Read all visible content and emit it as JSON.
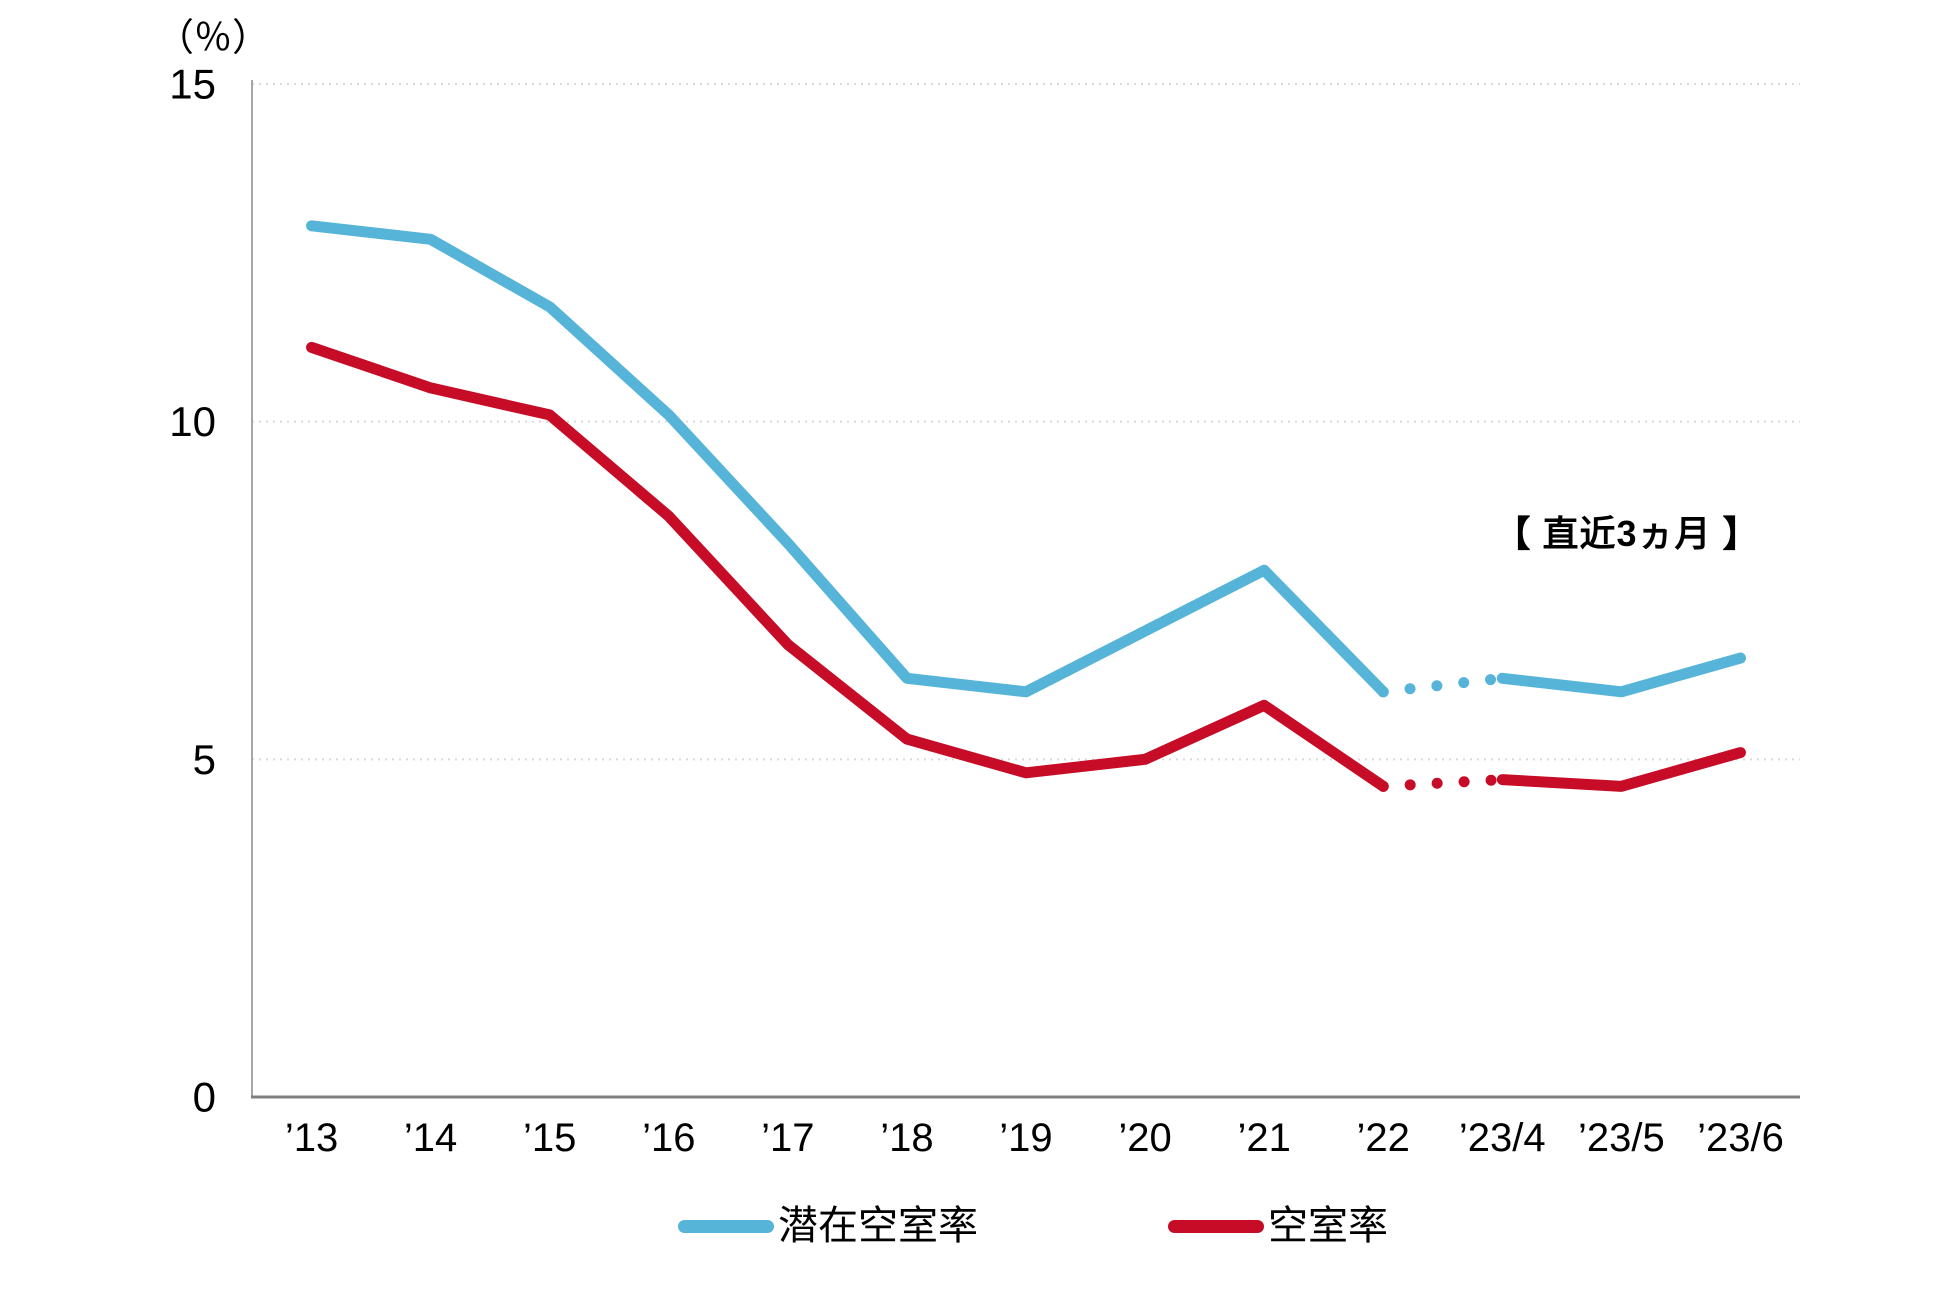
{
  "page": {
    "background_color": "#FFFFFF"
  },
  "chart_data": {
    "type": "line",
    "unit_label": "（％）",
    "annotation": "【 直近3ヵ月 】",
    "categories": [
      "’13",
      "’14",
      "’15",
      "’16",
      "’17",
      "’18",
      "’19",
      "’20",
      "’21",
      "’22",
      "’23/4",
      "’23/5",
      "’23/6"
    ],
    "series": [
      {
        "name": "潜在空室率",
        "color": "#55B4D7",
        "values": [
          12.9,
          12.7,
          11.7,
          10.1,
          8.2,
          6.2,
          6.0,
          6.9,
          7.8,
          6.0,
          6.2,
          6.0,
          6.5
        ],
        "dotted_segment": [
          9,
          10
        ]
      },
      {
        "name": "空室率",
        "color": "#C60C26",
        "values": [
          11.1,
          10.5,
          10.1,
          8.6,
          6.7,
          5.3,
          4.8,
          5.0,
          5.8,
          4.6,
          4.7,
          4.6,
          5.1
        ],
        "dotted_segment": [
          9,
          10
        ]
      }
    ],
    "ylim": [
      0,
      15
    ],
    "yticks": [
      0,
      5,
      10,
      15
    ],
    "grid": "horizontal dotted lines at 5, 10, 15",
    "legend_position": "bottom",
    "colors": {
      "grid": "#D9D9D9",
      "y_axis": "#A6A6A6",
      "x_axis": "#808080",
      "tick_text": "#000000"
    }
  },
  "legend": {
    "items": [
      {
        "label": "潜在空室率",
        "color": "#55B4D7"
      },
      {
        "label": "空室率",
        "color": "#C60C26"
      }
    ]
  }
}
